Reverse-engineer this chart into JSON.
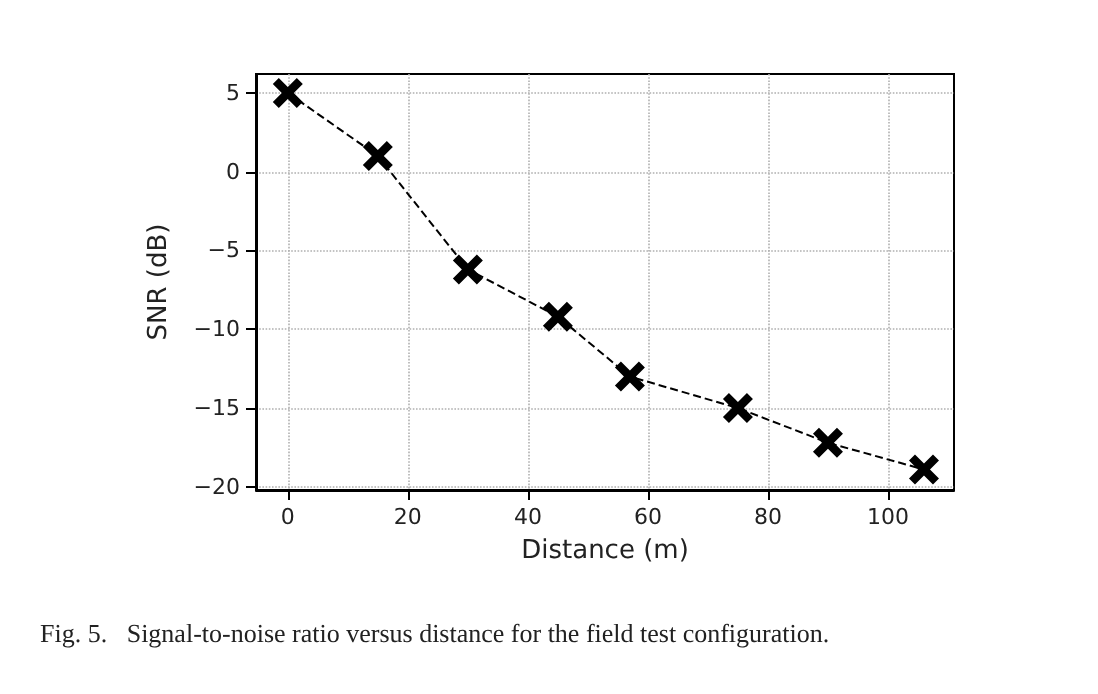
{
  "chart_data": {
    "type": "line",
    "xlabel": "Distance (m)",
    "ylabel": "SNR (dB)",
    "x": [
      0,
      15,
      30,
      45,
      57,
      75,
      90,
      106
    ],
    "series": [
      {
        "color": "#000000",
        "values": [
          5,
          1,
          -6.2,
          -9.2,
          -13,
          -15,
          -17.2,
          -18.9
        ]
      }
    ],
    "xlim": [
      -5.3,
      111
    ],
    "ylim": [
      -20.2,
      6.2
    ],
    "xticks": [
      0,
      20,
      40,
      60,
      80,
      100
    ],
    "yticks": [
      -20,
      -15,
      -10,
      -5,
      0,
      5
    ],
    "grid": true,
    "marker": "cross",
    "line_style": "dashed",
    "annotations": [
      "Fig. 5.   Signal-to-noise ratio versus distance for the field test configuration."
    ]
  }
}
